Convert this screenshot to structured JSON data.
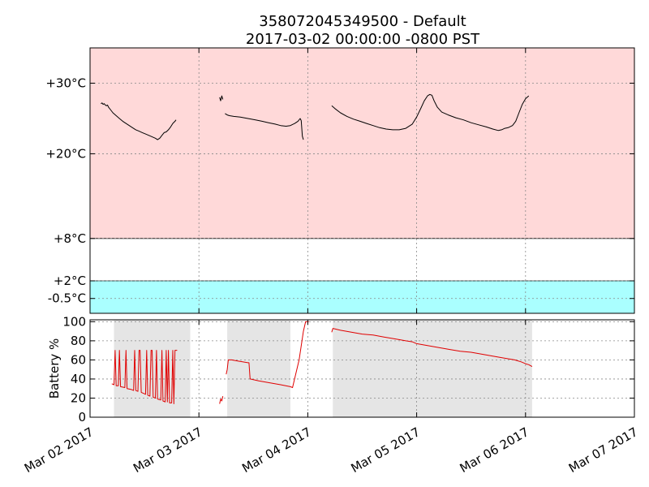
{
  "title_line1": "358072045349500 - Default",
  "title_line2": "2017-03-02 00:00:00 -0800 PST",
  "colors": {
    "alarm_high_band": "#ffd9d9",
    "alarm_low_band": "#aaffff",
    "temperature_line": "#000000",
    "battery_line": "#e00000",
    "data_coverage": "#e5e5e5",
    "grid": "#888888"
  },
  "chart_data": [
    {
      "type": "line",
      "title": "358072045349500 - Default",
      "subtitle": "2017-03-02 00:00:00 -0800 PST",
      "xlabel": "",
      "ylabel": "",
      "x_unit": "days since Mar 02 2017",
      "xlim": [
        "2017-03-02",
        "2017-03-07"
      ],
      "ylim": [
        -2.6,
        35.0
      ],
      "ytick_values": [
        30,
        20,
        8,
        2,
        -0.5
      ],
      "ytick_labels": [
        "+30°C",
        "+20°C",
        "+8°C",
        "+2°C",
        "-0.5°C"
      ],
      "bands": [
        {
          "from": 8,
          "to": 35.0,
          "color": "#ffd9d9"
        },
        {
          "from": -2.6,
          "to": 2,
          "color": "#aaffff"
        }
      ],
      "threshold_lines": [
        8,
        2
      ],
      "grid": true,
      "series": [
        {
          "name": "",
          "segments": [
            [
              [
                0.1,
                27.1
              ],
              [
                0.11,
                27.2
              ],
              [
                0.12,
                27.0
              ],
              [
                0.13,
                27.1
              ],
              [
                0.14,
                26.9
              ],
              [
                0.15,
                26.8
              ],
              [
                0.16,
                26.9
              ],
              [
                0.17,
                26.6
              ],
              [
                0.19,
                26.2
              ],
              [
                0.21,
                25.8
              ],
              [
                0.24,
                25.4
              ],
              [
                0.27,
                25.0
              ],
              [
                0.3,
                24.6
              ],
              [
                0.33,
                24.3
              ],
              [
                0.36,
                24.0
              ],
              [
                0.39,
                23.7
              ],
              [
                0.42,
                23.4
              ],
              [
                0.45,
                23.2
              ],
              [
                0.48,
                23.0
              ],
              [
                0.51,
                22.8
              ],
              [
                0.54,
                22.6
              ],
              [
                0.57,
                22.4
              ],
              [
                0.6,
                22.2
              ],
              [
                0.62,
                22.0
              ],
              [
                0.64,
                22.2
              ],
              [
                0.66,
                22.6
              ],
              [
                0.68,
                23.0
              ],
              [
                0.7,
                23.1
              ],
              [
                0.72,
                23.4
              ],
              [
                0.74,
                23.8
              ],
              [
                0.76,
                24.3
              ],
              [
                0.78,
                24.6
              ],
              [
                0.79,
                24.8
              ]
            ],
            [
              [
                1.19,
                28.0
              ],
              [
                1.2,
                27.5
              ],
              [
                1.21,
                28.2
              ],
              [
                1.22,
                27.7
              ]
            ],
            [
              [
                1.24,
                25.7
              ],
              [
                1.26,
                25.5
              ],
              [
                1.28,
                25.4
              ],
              [
                1.32,
                25.3
              ],
              [
                1.38,
                25.2
              ],
              [
                1.45,
                25.0
              ],
              [
                1.52,
                24.8
              ],
              [
                1.58,
                24.6
              ],
              [
                1.64,
                24.4
              ],
              [
                1.7,
                24.2
              ],
              [
                1.75,
                24.0
              ],
              [
                1.8,
                23.9
              ],
              [
                1.84,
                24.0
              ],
              [
                1.88,
                24.3
              ],
              [
                1.91,
                24.6
              ],
              [
                1.93,
                25.0
              ],
              [
                1.94,
                24.7
              ],
              [
                1.95,
                22.5
              ],
              [
                1.96,
                22.0
              ]
            ],
            [
              [
                2.22,
                26.8
              ],
              [
                2.25,
                26.4
              ],
              [
                2.3,
                25.8
              ],
              [
                2.36,
                25.3
              ],
              [
                2.42,
                24.9
              ],
              [
                2.48,
                24.6
              ],
              [
                2.54,
                24.3
              ],
              [
                2.6,
                24.0
              ],
              [
                2.66,
                23.7
              ],
              [
                2.72,
                23.5
              ],
              [
                2.78,
                23.4
              ],
              [
                2.84,
                23.4
              ],
              [
                2.9,
                23.6
              ],
              [
                2.96,
                24.2
              ],
              [
                3.0,
                25.2
              ],
              [
                3.04,
                26.5
              ],
              [
                3.07,
                27.5
              ],
              [
                3.1,
                28.2
              ],
              [
                3.12,
                28.4
              ],
              [
                3.14,
                28.3
              ],
              [
                3.16,
                27.5
              ],
              [
                3.19,
                26.6
              ],
              [
                3.23,
                25.9
              ],
              [
                3.29,
                25.5
              ],
              [
                3.36,
                25.1
              ],
              [
                3.43,
                24.8
              ],
              [
                3.5,
                24.4
              ],
              [
                3.57,
                24.1
              ],
              [
                3.64,
                23.8
              ],
              [
                3.7,
                23.5
              ],
              [
                3.75,
                23.3
              ],
              [
                3.78,
                23.4
              ],
              [
                3.81,
                23.6
              ],
              [
                3.84,
                23.7
              ],
              [
                3.88,
                24.0
              ],
              [
                3.91,
                24.6
              ],
              [
                3.94,
                25.8
              ],
              [
                3.97,
                27.0
              ],
              [
                4.0,
                27.8
              ],
              [
                4.03,
                28.2
              ]
            ]
          ]
        }
      ]
    },
    {
      "type": "line",
      "title": "",
      "xlabel": "",
      "ylabel": "Battery %",
      "x_unit": "days since Mar 02 2017",
      "xlim": [
        "2017-03-02",
        "2017-03-07"
      ],
      "ylim": [
        0,
        102
      ],
      "ytick_values": [
        0,
        20,
        40,
        60,
        80,
        100
      ],
      "ytick_labels": [
        "0",
        "20",
        "40",
        "60",
        "80",
        "100"
      ],
      "xtick_labels": [
        "Mar 02 2017",
        "Mar 03 2017",
        "Mar 04 2017",
        "Mar 05 2017",
        "Mar 06 2017",
        "Mar 07 2017"
      ],
      "coverage_spans": [
        [
          0.22,
          0.92
        ],
        [
          1.26,
          1.84
        ],
        [
          2.23,
          4.06
        ]
      ],
      "grid": true,
      "series": [
        {
          "name": "",
          "segments": [
            [
              [
                0.2,
                35
              ],
              [
                0.22,
                34
              ],
              [
                0.23,
                70
              ],
              [
                0.24,
                33
              ],
              [
                0.26,
                33
              ],
              [
                0.27,
                70
              ],
              [
                0.28,
                32
              ],
              [
                0.32,
                31
              ],
              [
                0.33,
                70
              ],
              [
                0.34,
                30
              ],
              [
                0.38,
                29
              ],
              [
                0.4,
                28
              ],
              [
                0.41,
                70
              ],
              [
                0.42,
                28
              ],
              [
                0.44,
                27
              ],
              [
                0.45,
                70
              ],
              [
                0.46,
                70
              ],
              [
                0.47,
                26
              ],
              [
                0.49,
                25
              ],
              [
                0.51,
                24
              ],
              [
                0.52,
                70
              ],
              [
                0.53,
                23
              ],
              [
                0.55,
                22
              ],
              [
                0.56,
                70
              ],
              [
                0.57,
                70
              ],
              [
                0.58,
                21
              ],
              [
                0.6,
                20
              ],
              [
                0.61,
                70
              ],
              [
                0.62,
                19
              ],
              [
                0.65,
                18
              ],
              [
                0.66,
                70
              ],
              [
                0.67,
                17
              ],
              [
                0.69,
                16
              ],
              [
                0.7,
                70
              ],
              [
                0.71,
                16
              ],
              [
                0.72,
                70
              ],
              [
                0.73,
                15
              ],
              [
                0.75,
                15
              ],
              [
                0.76,
                70
              ],
              [
                0.77,
                14
              ],
              [
                0.78,
                70
              ],
              [
                0.79,
                70
              ],
              [
                0.8,
                70
              ]
            ],
            [
              [
                1.19,
                14
              ],
              [
                1.2,
                19
              ],
              [
                1.21,
                17
              ],
              [
                1.22,
                22
              ]
            ],
            [
              [
                1.25,
                45
              ],
              [
                1.26,
                50
              ],
              [
                1.27,
                60
              ],
              [
                1.3,
                60
              ],
              [
                1.35,
                59
              ],
              [
                1.4,
                58
              ],
              [
                1.45,
                57
              ],
              [
                1.46,
                57
              ],
              [
                1.47,
                40
              ],
              [
                1.55,
                38
              ],
              [
                1.65,
                36
              ],
              [
                1.75,
                34
              ],
              [
                1.84,
                32
              ],
              [
                1.86,
                31
              ],
              [
                1.92,
                60
              ],
              [
                1.96,
                90
              ],
              [
                1.98,
                100
              ],
              [
                2.01,
                100
              ]
            ],
            [
              [
                2.22,
                89
              ],
              [
                2.23,
                93
              ],
              [
                2.3,
                91
              ],
              [
                2.4,
                89
              ],
              [
                2.5,
                87
              ],
              [
                2.6,
                86
              ],
              [
                2.7,
                84
              ],
              [
                2.8,
                82
              ],
              [
                2.9,
                80
              ],
              [
                2.96,
                79
              ],
              [
                3.0,
                77
              ],
              [
                3.1,
                75
              ],
              [
                3.2,
                73
              ],
              [
                3.3,
                71
              ],
              [
                3.4,
                69
              ],
              [
                3.5,
                68
              ],
              [
                3.6,
                66
              ],
              [
                3.7,
                64
              ],
              [
                3.8,
                62
              ],
              [
                3.9,
                60
              ],
              [
                3.96,
                58
              ],
              [
                4.0,
                56
              ],
              [
                4.03,
                55
              ],
              [
                4.06,
                53
              ]
            ]
          ]
        }
      ]
    }
  ]
}
